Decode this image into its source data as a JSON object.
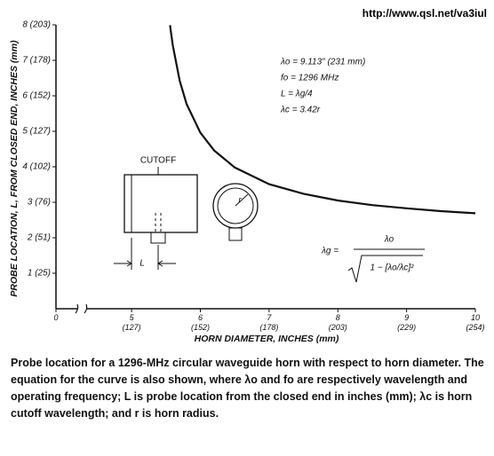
{
  "chart_data": {
    "type": "line",
    "source": "http://www.qsl.net/va3iul",
    "x_label": "HORN DIAMETER, INCHES (mm)",
    "y_label": "PROBE LOCATION, L, FROM CLOSED END, INCHES (mm)",
    "x": [
      5.56,
      5.57,
      5.6,
      5.7,
      5.8,
      6.0,
      6.2,
      6.5,
      7.0,
      7.5,
      8.0,
      8.5,
      9.0,
      9.5,
      10.0
    ],
    "series": [
      {
        "color": "#111111",
        "values": [
          7.99,
          7.83,
          7.42,
          6.42,
          5.77,
          4.96,
          4.46,
          3.98,
          3.51,
          3.24,
          3.05,
          2.92,
          2.83,
          2.75,
          2.69
        ]
      }
    ],
    "xlim": [
      3.9,
      10
    ],
    "ylim": [
      0,
      8
    ],
    "axis_break": true,
    "xticks": [
      0,
      {
        "value": 5,
        "label": "5\n(127)"
      },
      {
        "value": 6,
        "label": "6\n(152)"
      },
      {
        "value": 7,
        "label": "7\n(178)"
      },
      {
        "value": 8,
        "label": "8\n(203)"
      },
      {
        "value": 9,
        "label": "9\n(229)"
      },
      {
        "value": 10,
        "label": "10\n(254)"
      }
    ],
    "yticks": [
      {
        "value": 1,
        "label": "1 (25)"
      },
      {
        "value": 2,
        "label": "2 (51)"
      },
      {
        "value": 3,
        "label": "3 (76)"
      },
      {
        "value": 4,
        "label": "4 (102)"
      },
      {
        "value": 5,
        "label": "5 (127)"
      },
      {
        "value": 6,
        "label": "6 (152)"
      },
      {
        "value": 7,
        "label": "7 (178)"
      },
      {
        "value": 8,
        "label": "8 (203)"
      }
    ],
    "parameters": [
      "λo = 9.113\" (231 mm)",
      "fo = 1296 MHz",
      "L = λg/4",
      "λc = 3.42r"
    ],
    "formula": {
      "lhs": "λg =",
      "numerator": "λo",
      "denominator": "1 − [λo/λc]²"
    },
    "diagram": {
      "cutoff": "CUTOFF",
      "length": "L",
      "radius": "r"
    },
    "caption": "Probe location for a 1296-MHz circular waveguide horn with respect to horn diameter. The equation for the curve is also shown, where λo and fo are respectively wavelength and operating frequency; L is probe location from the closed end in inches (mm); λc is horn cutoff wavelength; and r is horn radius."
  }
}
